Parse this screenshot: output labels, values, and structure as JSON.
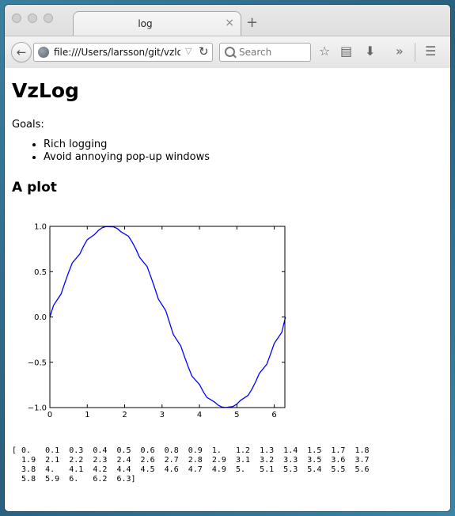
{
  "tab": {
    "title": "log",
    "close": "×",
    "new_tab": "+"
  },
  "nav": {
    "url": "file:///Users/larsson/git/vzlog",
    "search_placeholder": "Search",
    "overflow": "»"
  },
  "page": {
    "title": "VzLog",
    "goals_label": "Goals:",
    "goals": [
      "Rich logging",
      "Avoid annoying pop-up windows"
    ],
    "plot_heading": "A plot",
    "array_lines": [
      "[ 0.   0.1  0.3  0.4  0.5  0.6  0.8  0.9  1.   1.2  1.3  1.4  1.5  1.7  1.8",
      "  1.9  2.1  2.2  2.3  2.4  2.6  2.7  2.8  2.9  3.1  3.2  3.3  3.5  3.6  3.7",
      "  3.8  4.   4.1  4.2  4.4  4.5  4.6  4.7  4.9  5.   5.1  5.3  5.4  5.5  5.6",
      "  5.8  5.9  6.   6.2  6.3]"
    ]
  },
  "colors": {
    "line": "#0000ff",
    "accent": "#000000"
  },
  "chart_data": {
    "type": "line",
    "title": "",
    "xlabel": "",
    "ylabel": "",
    "xlim": [
      0,
      6.283
    ],
    "ylim": [
      -1.0,
      1.0
    ],
    "xticks": [
      "0",
      "1",
      "2",
      "3",
      "4",
      "5",
      "6"
    ],
    "yticks": [
      "1.0",
      "0.5",
      "0.0",
      "−0.5",
      "−1.0"
    ],
    "series": [
      {
        "color": "#0000ff",
        "x": [
          0.0,
          0.1,
          0.3,
          0.4,
          0.5,
          0.6,
          0.8,
          0.9,
          1.0,
          1.2,
          1.3,
          1.4,
          1.5,
          1.7,
          1.8,
          1.9,
          2.1,
          2.2,
          2.3,
          2.4,
          2.6,
          2.7,
          2.8,
          2.9,
          3.1,
          3.2,
          3.3,
          3.5,
          3.6,
          3.7,
          3.8,
          4.0,
          4.1,
          4.2,
          4.4,
          4.5,
          4.6,
          4.7,
          4.9,
          5.0,
          5.1,
          5.3,
          5.4,
          5.5,
          5.6,
          5.8,
          5.9,
          6.0,
          6.2,
          6.3
        ],
        "y": [
          0.0,
          0.128,
          0.254,
          0.375,
          0.49,
          0.597,
          0.694,
          0.78,
          0.853,
          0.912,
          0.956,
          0.985,
          0.998,
          0.995,
          0.976,
          0.941,
          0.891,
          0.827,
          0.749,
          0.658,
          0.556,
          0.444,
          0.324,
          0.198,
          0.069,
          -0.064,
          -0.193,
          -0.319,
          -0.439,
          -0.551,
          -0.653,
          -0.745,
          -0.824,
          -0.888,
          -0.938,
          -0.974,
          -0.994,
          -0.999,
          -0.988,
          -0.961,
          -0.92,
          -0.866,
          -0.797,
          -0.716,
          -0.624,
          -0.521,
          -0.409,
          -0.292,
          -0.169,
          0.0
        ]
      }
    ]
  }
}
